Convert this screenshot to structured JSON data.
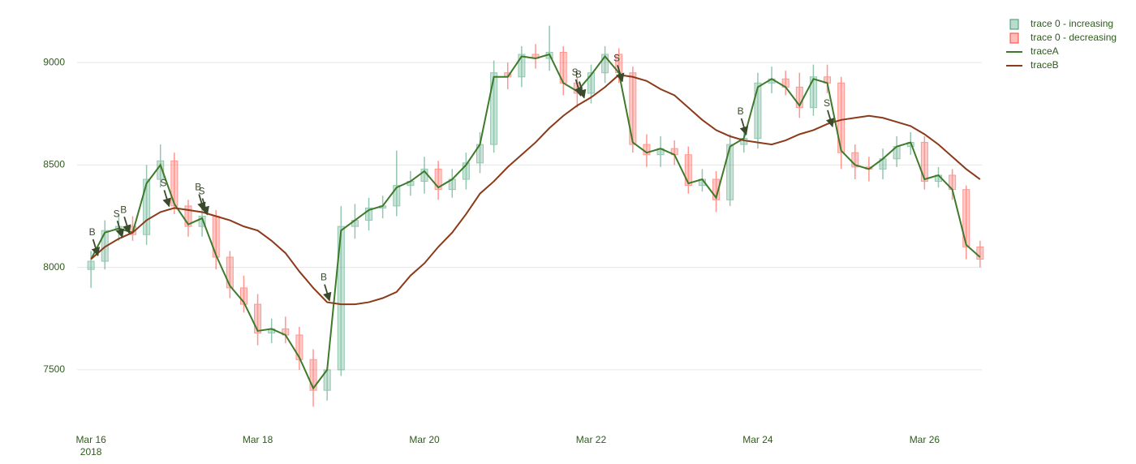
{
  "chart_data": {
    "type": "candlestick",
    "x": [
      "2018-03-16 00:00",
      "2018-03-16 04:00",
      "2018-03-16 08:00",
      "2018-03-16 12:00",
      "2018-03-16 16:00",
      "2018-03-16 20:00",
      "2018-03-17 00:00",
      "2018-03-17 04:00",
      "2018-03-17 08:00",
      "2018-03-17 12:00",
      "2018-03-17 16:00",
      "2018-03-17 20:00",
      "2018-03-18 00:00",
      "2018-03-18 04:00",
      "2018-03-18 08:00",
      "2018-03-18 12:00",
      "2018-03-18 16:00",
      "2018-03-18 20:00",
      "2018-03-19 00:00",
      "2018-03-19 04:00",
      "2018-03-19 08:00",
      "2018-03-19 12:00",
      "2018-03-19 16:00",
      "2018-03-19 20:00",
      "2018-03-20 00:00",
      "2018-03-20 04:00",
      "2018-03-20 08:00",
      "2018-03-20 12:00",
      "2018-03-20 16:00",
      "2018-03-20 20:00",
      "2018-03-21 00:00",
      "2018-03-21 04:00",
      "2018-03-21 08:00",
      "2018-03-21 12:00",
      "2018-03-21 16:00",
      "2018-03-21 20:00",
      "2018-03-22 00:00",
      "2018-03-22 04:00",
      "2018-03-22 08:00",
      "2018-03-22 12:00",
      "2018-03-22 16:00",
      "2018-03-22 20:00",
      "2018-03-23 00:00",
      "2018-03-23 04:00",
      "2018-03-23 08:00",
      "2018-03-23 12:00",
      "2018-03-23 16:00",
      "2018-03-23 20:00",
      "2018-03-24 00:00",
      "2018-03-24 04:00",
      "2018-03-24 08:00",
      "2018-03-24 12:00",
      "2018-03-24 16:00",
      "2018-03-24 20:00",
      "2018-03-25 00:00",
      "2018-03-25 04:00",
      "2018-03-25 08:00",
      "2018-03-25 12:00",
      "2018-03-25 16:00",
      "2018-03-25 20:00",
      "2018-03-26 00:00",
      "2018-03-26 04:00",
      "2018-03-26 08:00",
      "2018-03-26 12:00",
      "2018-03-26 16:00"
    ],
    "open": [
      7990,
      8030,
      8180,
      8200,
      8160,
      8430,
      8520,
      8300,
      8200,
      8250,
      8050,
      7900,
      7820,
      7680,
      7700,
      7670,
      7550,
      7400,
      7500,
      8200,
      8230,
      8290,
      8300,
      8400,
      8420,
      8480,
      8380,
      8430,
      8510,
      8600,
      8950,
      8930,
      9040,
      9020,
      9050,
      8900,
      8850,
      8950,
      9040,
      8950,
      8600,
      8550,
      8580,
      8550,
      8400,
      8430,
      8330,
      8600,
      8630,
      8900,
      8920,
      8880,
      8780,
      8930,
      8900,
      8560,
      8490,
      8480,
      8530,
      8590,
      8610,
      8420,
      8450,
      8380,
      8100
    ],
    "high": [
      8080,
      8230,
      8260,
      8250,
      8500,
      8600,
      8560,
      8330,
      8300,
      8280,
      8080,
      7960,
      7870,
      7750,
      7760,
      7710,
      7600,
      7510,
      8300,
      8310,
      8340,
      8350,
      8570,
      8470,
      8540,
      8520,
      8480,
      8560,
      8660,
      9010,
      9000,
      9080,
      9090,
      9180,
      9080,
      8930,
      8990,
      9080,
      9070,
      8980,
      8650,
      8640,
      8620,
      8590,
      8480,
      8470,
      8650,
      8680,
      8950,
      8980,
      8960,
      8950,
      8990,
      8990,
      8930,
      8600,
      8540,
      8580,
      8640,
      8660,
      8640,
      8490,
      8480,
      8400,
      8130
    ],
    "low": [
      7900,
      7990,
      8130,
      8130,
      8110,
      8390,
      8260,
      8150,
      8150,
      7990,
      7850,
      7780,
      7620,
      7630,
      7630,
      7500,
      7320,
      7350,
      7470,
      8140,
      8180,
      8240,
      8250,
      8350,
      8360,
      8330,
      8340,
      8380,
      8460,
      8560,
      8870,
      8880,
      8970,
      8960,
      8840,
      8780,
      8800,
      8900,
      8900,
      8560,
      8490,
      8490,
      8500,
      8360,
      8370,
      8270,
      8300,
      8560,
      8580,
      8850,
      8840,
      8730,
      8740,
      8850,
      8480,
      8430,
      8420,
      8430,
      8490,
      8550,
      8380,
      8390,
      8330,
      8040,
      8000
    ],
    "close": [
      8030,
      8180,
      8200,
      8160,
      8430,
      8520,
      8300,
      8200,
      8250,
      8050,
      7900,
      7820,
      7680,
      7700,
      7670,
      7550,
      7400,
      7500,
      8200,
      8230,
      8290,
      8300,
      8400,
      8420,
      8480,
      8380,
      8430,
      8510,
      8600,
      8950,
      8930,
      9040,
      9020,
      9050,
      8900,
      8850,
      8950,
      9040,
      8950,
      8600,
      8550,
      8580,
      8550,
      8400,
      8430,
      8330,
      8600,
      8630,
      8900,
      8920,
      8880,
      8780,
      8930,
      8900,
      8560,
      8490,
      8480,
      8530,
      8590,
      8610,
      8420,
      8450,
      8380,
      8100,
      8040
    ],
    "increasing": {
      "name": "trace 0 - increasing",
      "color": "#3D9970"
    },
    "decreasing": {
      "name": "trace 0 - decreasing",
      "color": "#FF4136"
    },
    "series": [
      {
        "name": "traceA",
        "color": "#3d7a2a",
        "values": [
          8040,
          8170,
          8190,
          8170,
          8410,
          8500,
          8310,
          8210,
          8240,
          8060,
          7910,
          7830,
          7690,
          7700,
          7670,
          7560,
          7410,
          7500,
          8180,
          8230,
          8280,
          8300,
          8390,
          8420,
          8470,
          8390,
          8430,
          8500,
          8600,
          8930,
          8930,
          9030,
          9020,
          9040,
          8900,
          8860,
          8940,
          9030,
          8950,
          8610,
          8560,
          8580,
          8550,
          8410,
          8430,
          8340,
          8590,
          8630,
          8880,
          8920,
          8880,
          8790,
          8920,
          8900,
          8570,
          8500,
          8480,
          8530,
          8590,
          8610,
          8430,
          8450,
          8380,
          8110,
          8050
        ]
      },
      {
        "name": "traceB",
        "color": "#8b3a1a",
        "values": [
          8040,
          8100,
          8140,
          8170,
          8230,
          8270,
          8290,
          8280,
          8270,
          8250,
          8230,
          8200,
          8180,
          8130,
          8070,
          7980,
          7900,
          7830,
          7820,
          7820,
          7830,
          7850,
          7880,
          7960,
          8020,
          8100,
          8170,
          8260,
          8360,
          8420,
          8490,
          8550,
          8610,
          8680,
          8740,
          8790,
          8830,
          8880,
          8940,
          8930,
          8910,
          8870,
          8840,
          8780,
          8720,
          8670,
          8640,
          8620,
          8610,
          8600,
          8620,
          8650,
          8670,
          8700,
          8720,
          8730,
          8740,
          8730,
          8710,
          8690,
          8650,
          8600,
          8540,
          8480,
          8430
        ]
      }
    ],
    "annotations": [
      {
        "text": "B",
        "x": "2018-03-16 02:00",
        "y": 8050
      },
      {
        "text": "S",
        "x": "2018-03-16 09:00",
        "y": 8140
      },
      {
        "text": "B",
        "x": "2018-03-16 11:00",
        "y": 8160
      },
      {
        "text": "S",
        "x": "2018-03-16 22:30",
        "y": 8290
      },
      {
        "text": "B",
        "x": "2018-03-17 08:30",
        "y": 8270
      },
      {
        "text": "S",
        "x": "2018-03-17 09:30",
        "y": 8250
      },
      {
        "text": "B",
        "x": "2018-03-18 20:40",
        "y": 7830
      },
      {
        "text": "S",
        "x": "2018-03-21 21:00",
        "y": 8830
      },
      {
        "text": "B",
        "x": "2018-03-21 22:00",
        "y": 8820
      },
      {
        "text": "S",
        "x": "2018-03-22 09:00",
        "y": 8900
      },
      {
        "text": "B",
        "x": "2018-03-23 20:40",
        "y": 8640
      },
      {
        "text": "S",
        "x": "2018-03-24 21:30",
        "y": 8680
      }
    ],
    "xlim": [
      "2018-03-15 20:00",
      "2018-03-26 16:30"
    ],
    "xticks": [
      {
        "value": "2018-03-16",
        "label": "Mar 16"
      },
      {
        "value": "2018-03-18",
        "label": "Mar 18"
      },
      {
        "value": "2018-03-20",
        "label": "Mar 20"
      },
      {
        "value": "2018-03-22",
        "label": "Mar 22"
      },
      {
        "value": "2018-03-24",
        "label": "Mar 24"
      },
      {
        "value": "2018-03-26",
        "label": "Mar 26"
      }
    ],
    "xtick_year": "2018",
    "ylim": [
      7270,
      9230
    ],
    "yticks": [
      7500,
      8000,
      8500,
      9000
    ],
    "grid": true
  }
}
